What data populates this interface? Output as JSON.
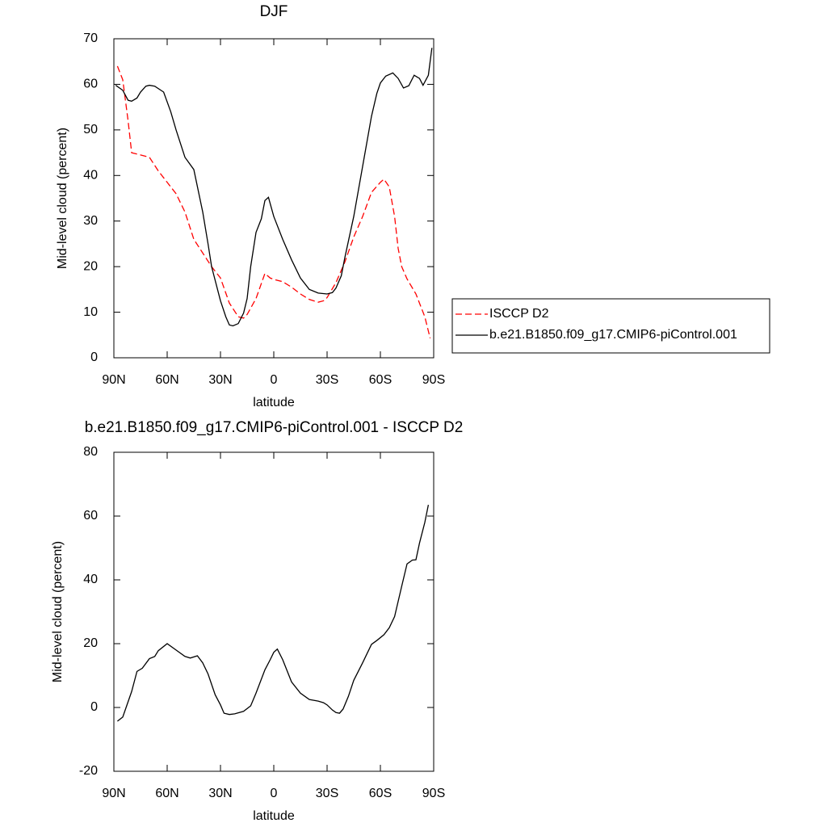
{
  "chart_data": [
    {
      "type": "line",
      "title": "DJF",
      "xlabel": "latitude",
      "ylabel": "Mid-level cloud (percent)",
      "xlim": [
        90,
        -90
      ],
      "xticks": [
        {
          "value": 90,
          "label": "90N"
        },
        {
          "value": 60,
          "label": "60N"
        },
        {
          "value": 30,
          "label": "30N"
        },
        0,
        {
          "value": -30,
          "label": "30S"
        },
        {
          "value": -60,
          "label": "60S"
        },
        {
          "value": -90,
          "label": "90S"
        }
      ],
      "ylim": [
        0,
        70
      ],
      "yticks": [
        0,
        10,
        20,
        30,
        40,
        50,
        60,
        70
      ],
      "legend": "right",
      "series": [
        {
          "name": "ISCCP D2",
          "color": "#ff0000",
          "dashed": true,
          "x": [
            88,
            85,
            82,
            80,
            75,
            70,
            65,
            60,
            55,
            50,
            45,
            40,
            35,
            30,
            25,
            20,
            17,
            15,
            10,
            5,
            2,
            0,
            -5,
            -10,
            -15,
            -20,
            -25,
            -28,
            -30,
            -35,
            -40,
            -45,
            -50,
            -55,
            -60,
            -62,
            -65,
            -68,
            -70,
            -72,
            -75,
            -80,
            -85,
            -88
          ],
          "values": [
            64,
            61,
            52,
            45,
            44.5,
            44,
            41,
            38.5,
            36,
            32,
            26,
            23,
            20,
            17.5,
            12,
            9,
            8.7,
            9.5,
            13,
            18.5,
            17.5,
            17.2,
            16.7,
            15.5,
            14,
            12.8,
            12.2,
            12.5,
            13.2,
            16.5,
            21,
            26.5,
            31,
            36.3,
            38.5,
            39.2,
            37.5,
            31,
            24,
            20,
            17.3,
            14,
            9,
            4.3
          ]
        },
        {
          "name": "b.e21.B1850.f09_g17.CMIP6-piControl.001",
          "color": "#000000",
          "dashed": false,
          "x": [
            89,
            85,
            82,
            80,
            77,
            75,
            72,
            70,
            67,
            62,
            58,
            55,
            50,
            45,
            40,
            37,
            35,
            30,
            27,
            25,
            23,
            20,
            17,
            15,
            13,
            10,
            7,
            5,
            3,
            0,
            -5,
            -10,
            -15,
            -20,
            -25,
            -30,
            -33,
            -35,
            -38,
            -40,
            -45,
            -50,
            -55,
            -58,
            -60,
            -63,
            -67,
            -70,
            -73,
            -76,
            -79,
            -82,
            -84,
            -87,
            -89
          ],
          "values": [
            59.8,
            58.7,
            56.5,
            56.3,
            57,
            58.3,
            59.6,
            59.8,
            59.6,
            58.3,
            54,
            50,
            44,
            41.3,
            32,
            25,
            20,
            12.5,
            9,
            7.2,
            7,
            7.5,
            9.8,
            13,
            20,
            27.5,
            30.5,
            34.5,
            35.2,
            31,
            26,
            21.5,
            17.5,
            15,
            14.2,
            14,
            14.3,
            15.3,
            18,
            22,
            31,
            42,
            53,
            58,
            60.3,
            61.8,
            62.5,
            61.3,
            59.2,
            59.7,
            62,
            61.3,
            59.8,
            62,
            68
          ]
        }
      ]
    },
    {
      "type": "line",
      "title": "b.e21.B1850.f09_g17.CMIP6-piControl.001 - ISCCP D2",
      "xlabel": "latitude",
      "ylabel": "Mid-level cloud (percent)",
      "xlim": [
        90,
        -90
      ],
      "xticks": [
        {
          "value": 90,
          "label": "90N"
        },
        {
          "value": 60,
          "label": "60N"
        },
        {
          "value": 30,
          "label": "30N"
        },
        0,
        {
          "value": -30,
          "label": "30S"
        },
        {
          "value": -60,
          "label": "60S"
        },
        {
          "value": -90,
          "label": "90S"
        }
      ],
      "ylim": [
        -20,
        80
      ],
      "yticks": [
        -20,
        0,
        20,
        40,
        60,
        80
      ],
      "color": "#000000",
      "x": [
        88,
        85,
        80,
        77,
        74,
        70,
        67,
        65,
        60,
        55,
        50,
        47,
        43,
        40,
        37,
        33,
        30,
        28,
        25,
        22,
        17,
        13,
        10,
        5,
        2,
        0,
        -2,
        -5,
        -10,
        -15,
        -20,
        -25,
        -28,
        -30,
        -33,
        -35,
        -37,
        -39,
        -42,
        -45,
        -50,
        -55,
        -58,
        -62,
        -65,
        -68,
        -72,
        -75,
        -78,
        -80,
        -82,
        -85,
        -87
      ],
      "values": [
        -4.3,
        -3,
        5,
        11.3,
        12.3,
        15.3,
        16,
        17.8,
        20,
        18,
        16,
        15.5,
        16.2,
        14,
        10.5,
        4,
        0.8,
        -1.8,
        -2.2,
        -2,
        -1.2,
        0.5,
        4.5,
        11.8,
        15,
        17.3,
        18.3,
        15,
        8,
        4.5,
        2.5,
        2,
        1.5,
        0.8,
        -0.8,
        -1.6,
        -1.8,
        -0.5,
        3.5,
        8.5,
        14,
        19.8,
        21,
        22.8,
        25,
        28.5,
        38,
        45,
        46.2,
        46.3,
        51.5,
        58,
        63.5
      ]
    }
  ]
}
